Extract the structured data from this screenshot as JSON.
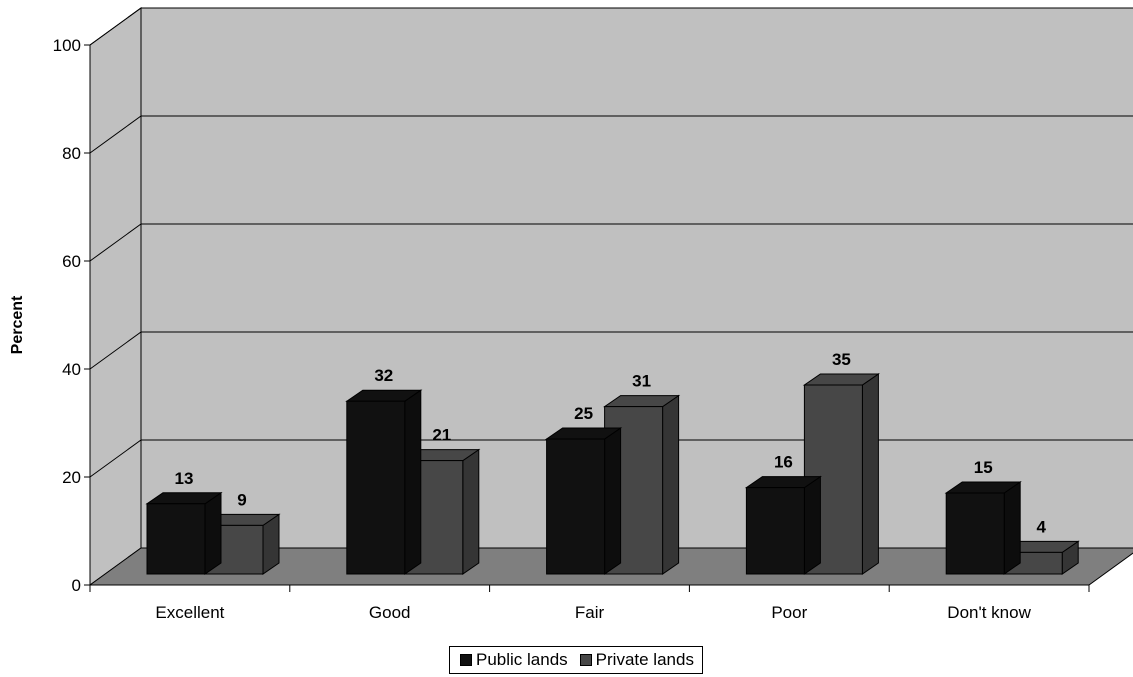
{
  "chart_data": {
    "type": "bar",
    "title": "",
    "xlabel": "",
    "ylabel": "Percent",
    "ylim": [
      0,
      100
    ],
    "yticks": [
      0,
      20,
      40,
      60,
      80,
      100
    ],
    "categories": [
      "Excellent",
      "Good",
      "Fair",
      "Poor",
      "Don't know"
    ],
    "series": [
      {
        "name": "Public lands",
        "values": [
          13,
          32,
          25,
          16,
          15
        ],
        "color": "#111111"
      },
      {
        "name": "Private lands",
        "values": [
          9,
          21,
          31,
          35,
          4
        ],
        "color": "#474747"
      }
    ],
    "grid": true,
    "legend_position": "bottom",
    "style": "3d-clustered-column",
    "colors": {
      "wall": "#c0c0c0",
      "floor": "#7f7f7f"
    }
  }
}
